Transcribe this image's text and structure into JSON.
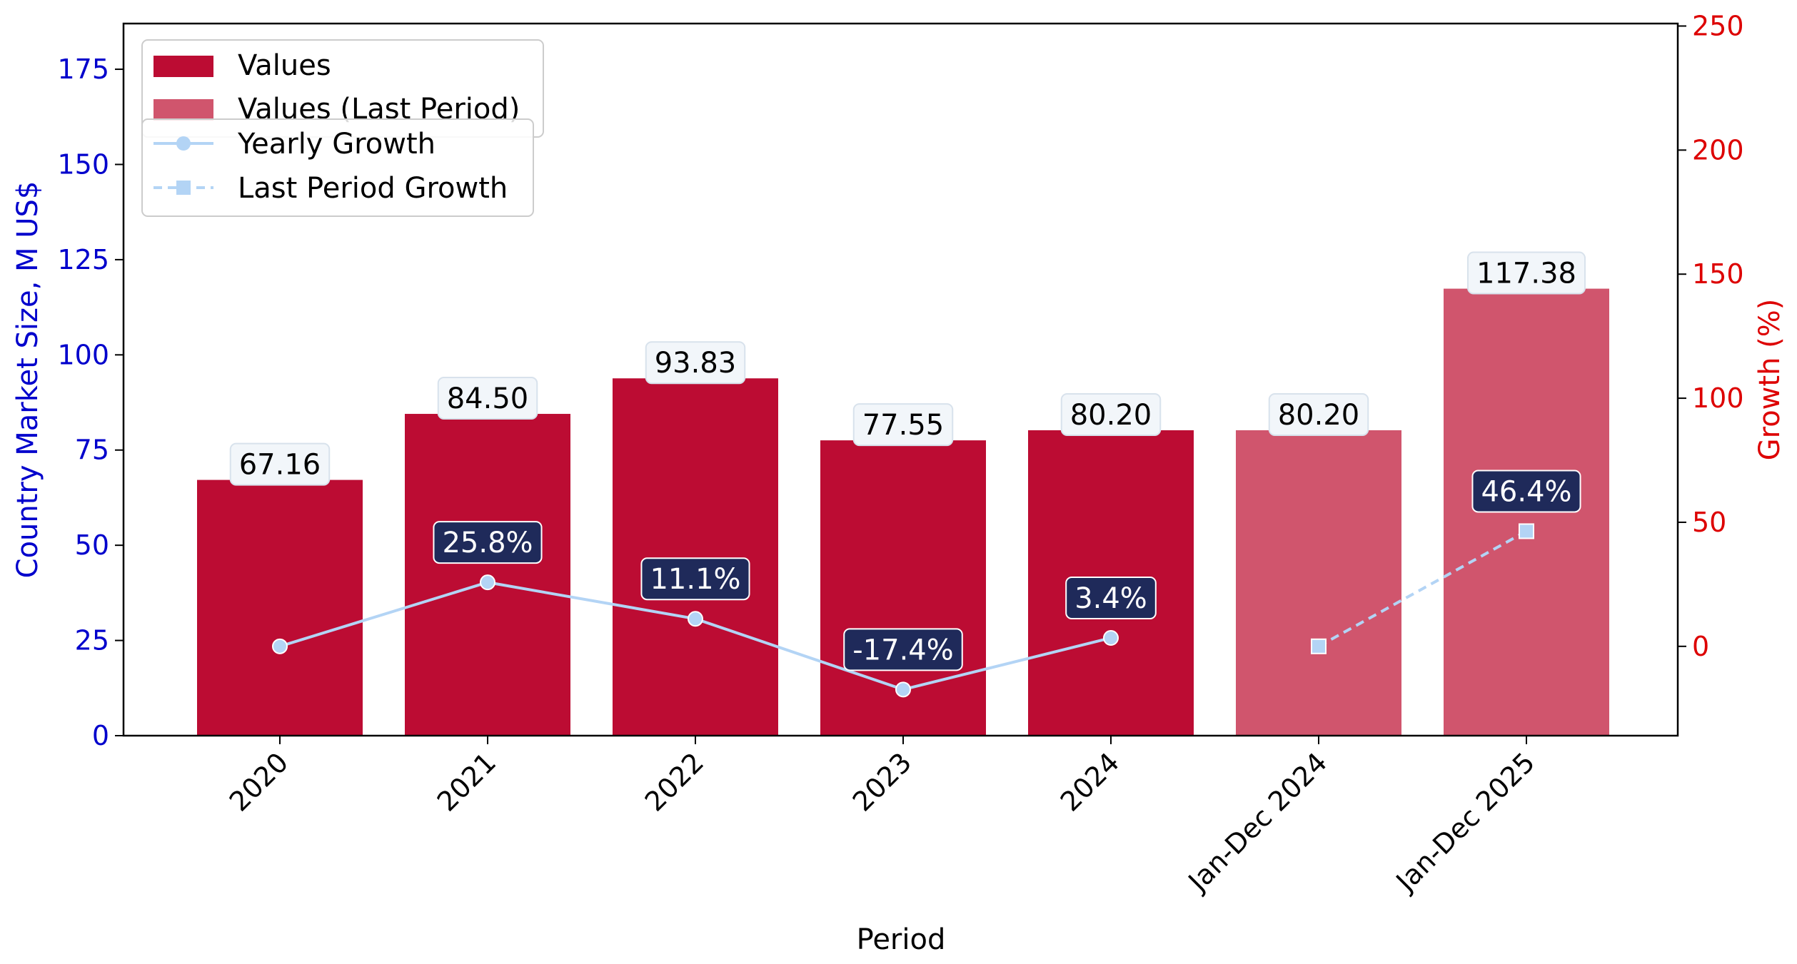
{
  "chart_data": {
    "type": "bar",
    "categories": [
      "2020",
      "2021",
      "2022",
      "2023",
      "2024",
      "Jan-Dec 2024",
      "Jan-Dec 2025"
    ],
    "series": [
      {
        "name": "Values",
        "values": [
          67.16,
          84.5,
          93.83,
          77.55,
          80.2,
          null,
          null
        ],
        "labels": [
          "67.16",
          "84.50",
          "93.83",
          "77.55",
          "80.20",
          null,
          null
        ]
      },
      {
        "name": "Values (Last Period)",
        "values": [
          null,
          null,
          null,
          null,
          null,
          80.2,
          117.38
        ],
        "labels": [
          null,
          null,
          null,
          null,
          null,
          "80.20",
          "117.38"
        ]
      },
      {
        "name": "Yearly Growth",
        "type": "line",
        "axis": "right",
        "values": [
          0,
          25.8,
          11.1,
          -17.4,
          3.4,
          null,
          null
        ],
        "labels": [
          null,
          "25.8%",
          "11.1%",
          "-17.4%",
          "3.4%",
          null,
          null
        ]
      },
      {
        "name": "Last Period Growth",
        "type": "line",
        "style": "dashed",
        "axis": "right",
        "values": [
          null,
          null,
          null,
          null,
          null,
          0,
          46.4
        ],
        "labels": [
          null,
          null,
          null,
          null,
          null,
          null,
          "46.4%"
        ]
      }
    ],
    "xlabel": "Period",
    "ylabel_left": "Country Market Size, M US$",
    "ylabel_right": "Growth (%)",
    "ylim_left": [
      0,
      187
    ],
    "ylim_right": [
      -36,
      251
    ],
    "yticks_left": [
      "0",
      "25",
      "50",
      "75",
      "100",
      "125",
      "150",
      "175"
    ],
    "yticks_right": [
      "0",
      "50",
      "100",
      "150",
      "200",
      "250"
    ],
    "legend": "top-left",
    "grid": false,
    "colors": {
      "values": "#bc0c33",
      "values_last": "#d0556d",
      "growth_line": "#b3d4f5",
      "growth_label_bg": "#1f2a5a",
      "value_label_bg": "#f2f6fa",
      "left_axis": "#0000cc",
      "right_axis": "#dd0000"
    }
  }
}
